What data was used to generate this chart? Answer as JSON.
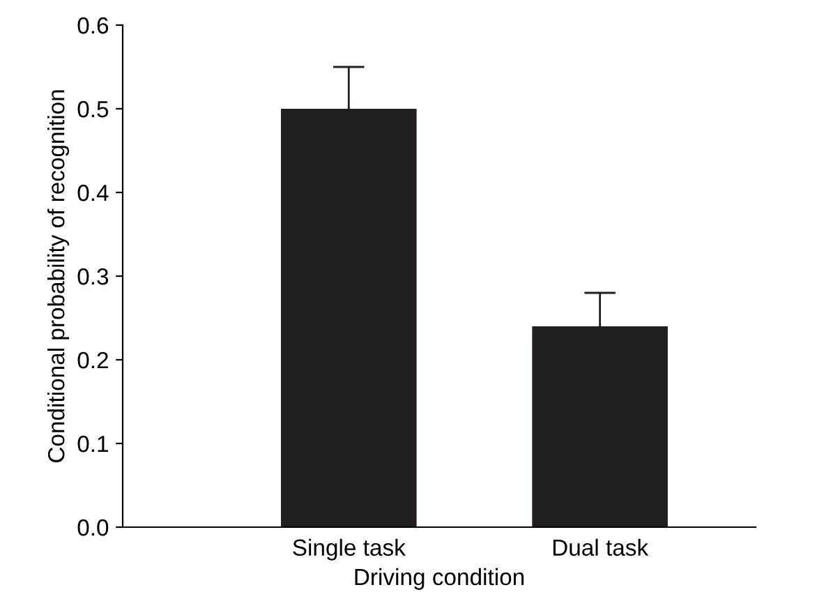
{
  "chart_data": {
    "type": "bar",
    "xlabel": "Driving condition",
    "ylabel": "Conditional probability of recognition",
    "categories": [
      "Single task",
      "Dual task"
    ],
    "values": [
      0.5,
      0.24
    ],
    "errors": [
      0.05,
      0.04
    ],
    "color": "#231f20",
    "ylim": [
      0,
      0.6
    ],
    "yticks": [
      {
        "value": 0,
        "label": "0.0"
      },
      0.1,
      0.2,
      0.3,
      0.4,
      0.5,
      0.6
    ],
    "grid": false,
    "legend": false
  }
}
